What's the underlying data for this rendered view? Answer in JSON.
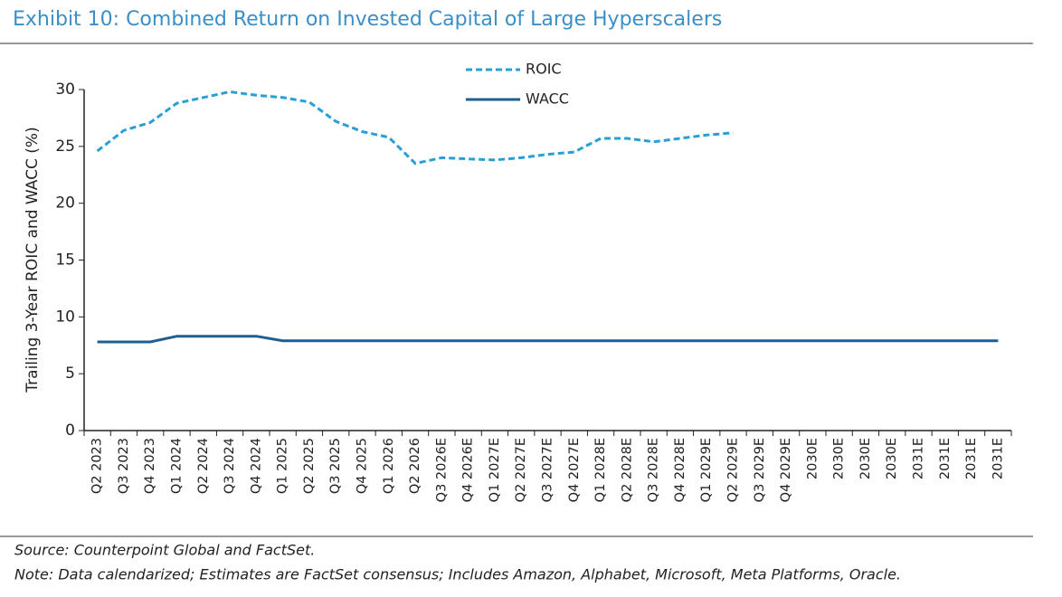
{
  "chart_data": {
    "type": "line",
    "title": "Exhibit 10: Combined Return on Invested Capital of Large Hyperscalers",
    "y_label": "Trailing 3-Year ROIC and WACC (%)",
    "source": "Source: Counterpoint Global and FactSet.",
    "note": "Note: Data calendarized; Estimates are FactSet consensus; Includes Amazon, Alphabet, Microsoft, Meta Platforms, Oracle.",
    "categories": [
      "Q2 2023",
      "Q3 2023",
      "Q4 2023",
      "Q1 2024",
      "Q2 2024",
      "Q3 2024",
      "Q4 2024",
      "Q1 2025",
      "Q2 2025",
      "Q3 2025",
      "Q4 2025",
      "Q1 2026",
      "Q2 2026",
      "Q3 2026E",
      "Q4 2026E",
      "Q1 2027E",
      "Q2 2027E",
      "Q3 2027E",
      "Q4 2027E",
      "Q1 2028E",
      "Q2 2028E",
      "Q3 2028E",
      "Q4 2028E",
      "Q1 2029E",
      "Q2 2029E",
      "Q3 2029E",
      "Q4 2029E",
      "2030E",
      "2030E",
      "2030E",
      "2030E",
      "2031E",
      "2031E",
      "2031E",
      "2031E"
    ],
    "series": [
      {
        "name": "ROIC",
        "color": "#2a9fd6",
        "dashed": true,
        "values": [
          24.6,
          26.4,
          27.1,
          28.8,
          29.3,
          29.8,
          29.5,
          29.3,
          28.9,
          27.2,
          26.3,
          25.8,
          23.5,
          24.0,
          23.9,
          23.8,
          24.0,
          24.3,
          24.5,
          25.7,
          25.7,
          25.4,
          25.7,
          26.0,
          26.2,
          null,
          null,
          null,
          null,
          null,
          null,
          null,
          null,
          null,
          null
        ]
      },
      {
        "name": "WACC",
        "color": "#1f5f8f",
        "dashed": false,
        "values": [
          7.8,
          7.8,
          7.8,
          8.3,
          8.3,
          8.3,
          8.3,
          7.9,
          7.9,
          7.9,
          7.9,
          7.9,
          7.9,
          7.9,
          7.9,
          7.9,
          7.9,
          7.9,
          7.9,
          7.9,
          7.9,
          7.9,
          7.9,
          7.9,
          7.9,
          7.9,
          7.9,
          7.9,
          7.9,
          7.9,
          7.9,
          7.9,
          7.9,
          7.9,
          7.9
        ]
      }
    ],
    "ylim": [
      0,
      30
    ],
    "yticks": [
      0,
      5,
      10,
      15,
      20,
      25,
      30
    ],
    "grid": false
  }
}
